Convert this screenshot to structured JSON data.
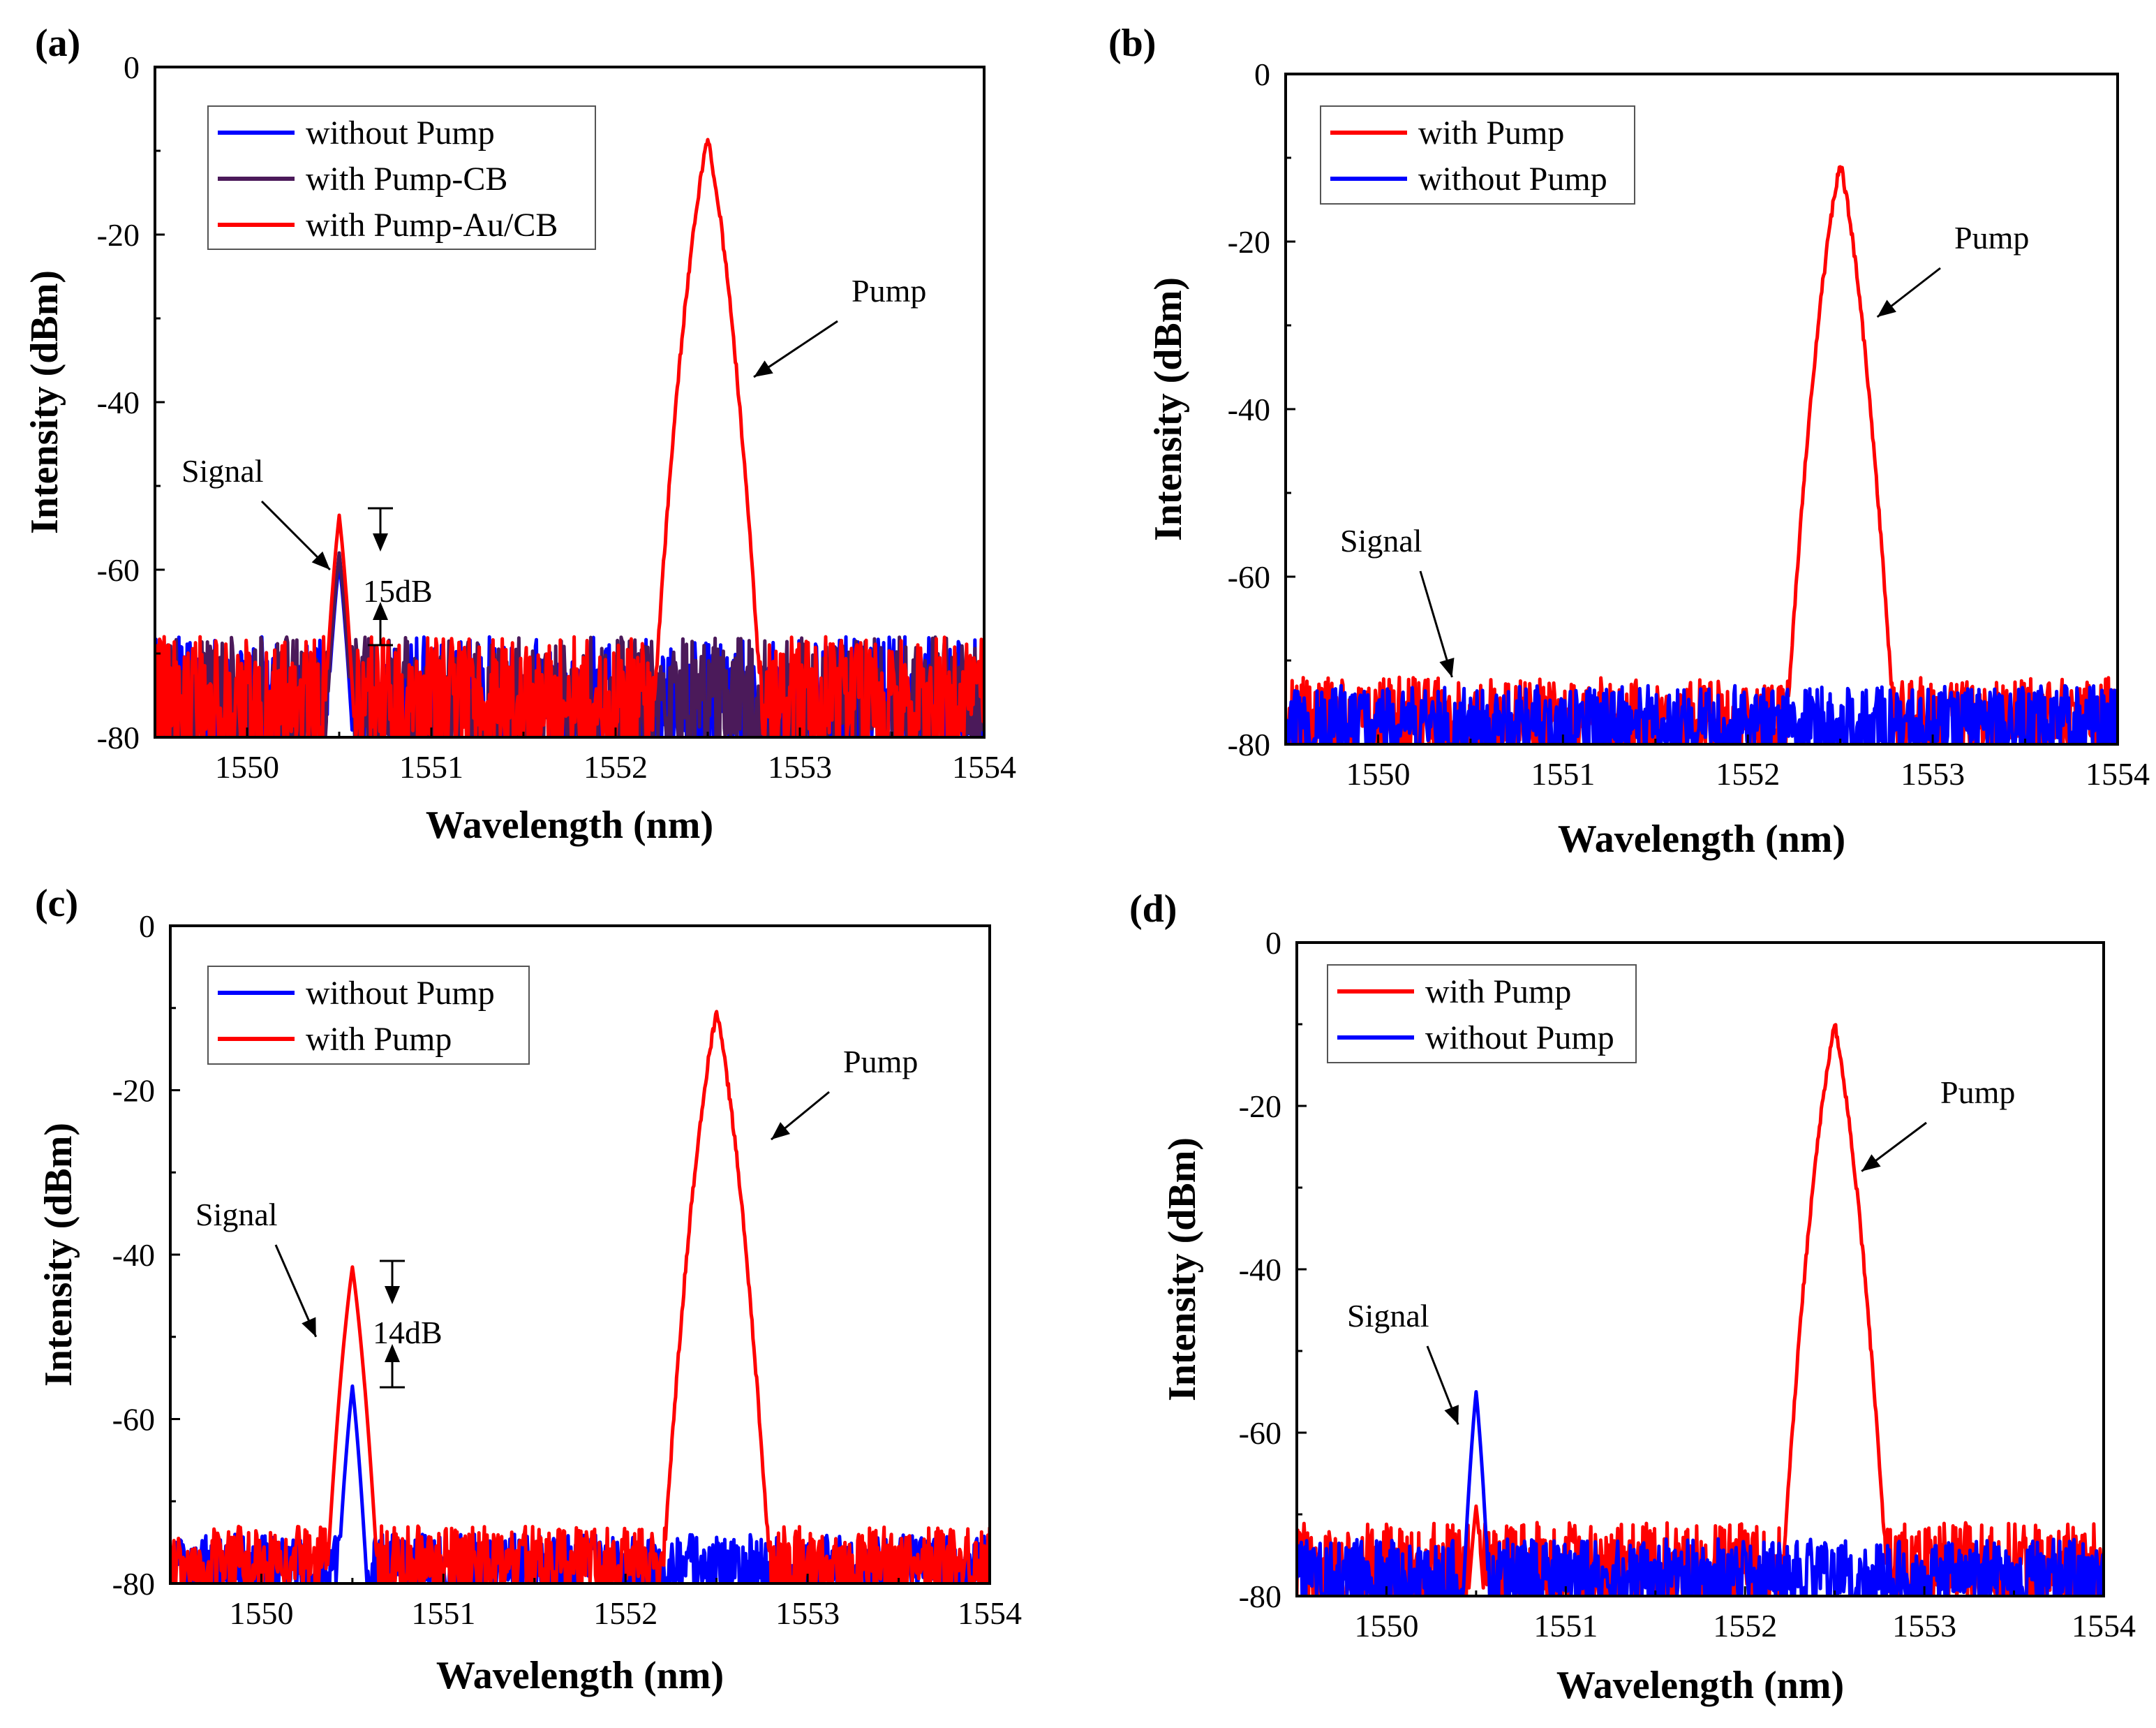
{
  "chart_data": [
    {
      "type": "line",
      "panel_label": "(a)",
      "xlabel": "Wavelength (nm)",
      "ylabel": "Intensity (dBm)",
      "xlim": [
        1549.5,
        1554
      ],
      "ylim": [
        -80,
        0
      ],
      "xticks": [
        "1550",
        "1551",
        "1552",
        "1553",
        "1554"
      ],
      "yticks": [
        "0",
        "-20",
        "-40",
        "-60",
        "-80"
      ],
      "legend_position": "top-left",
      "series": [
        {
          "name": "without Pump",
          "color": "#0000ff",
          "profile": {
            "noise_floor": -74,
            "noise_range": [
              -80,
              -68
            ],
            "signal_peak": {
              "x": 1550.5,
              "y": -59,
              "width": 0.04
            }
          }
        },
        {
          "name": "with Pump-CB",
          "color": "#4b1a5a",
          "profile": {
            "noise_floor": -74,
            "noise_range": [
              -80,
              -68
            ],
            "signal_peak": {
              "x": 1550.5,
              "y": -58,
              "width": 0.04
            }
          }
        },
        {
          "name": "with Pump-Au/CB",
          "color": "#ff0000",
          "profile": {
            "noise_floor": -74,
            "noise_range": [
              -80,
              -68
            ],
            "signal_peak": {
              "x": 1550.5,
              "y": -53.5,
              "width": 0.04
            },
            "pump_peak": {
              "x": 1552.5,
              "y": -8.5,
              "width": 0.07
            }
          }
        }
      ],
      "annotations": [
        {
          "text": "Signal",
          "arrow_to": [
            1550.45,
            -60
          ]
        },
        {
          "text": "Pump",
          "arrow_to": [
            1552.75,
            -37
          ]
        },
        {
          "text": "15dB"
        }
      ]
    },
    {
      "type": "line",
      "panel_label": "(b)",
      "xlabel": "Wavelength (nm)",
      "ylabel": "Intensity (dBm)",
      "xlim": [
        1549.5,
        1554
      ],
      "ylim": [
        -80,
        0
      ],
      "xticks": [
        "1550",
        "1551",
        "1552",
        "1553",
        "1554"
      ],
      "yticks": [
        "0",
        "-20",
        "-40",
        "-60",
        "-80"
      ],
      "legend_position": "top-left",
      "series": [
        {
          "name": "with Pump",
          "color": "#ff0000",
          "profile": {
            "noise_floor": -76,
            "noise_range": [
              -80,
              -72
            ],
            "pump_peak": {
              "x": 1552.5,
              "y": -10.5,
              "width": 0.07
            }
          }
        },
        {
          "name": "without Pump",
          "color": "#0000ff",
          "profile": {
            "noise_floor": -78,
            "noise_range": [
              -80,
              -73
            ]
          }
        }
      ],
      "annotations": [
        {
          "text": "Signal",
          "arrow_to": [
            1550.4,
            -72
          ]
        },
        {
          "text": "Pump",
          "arrow_to": [
            1552.7,
            -29
          ]
        }
      ]
    },
    {
      "type": "line",
      "panel_label": "(c)",
      "xlabel": "Wavelength (nm)",
      "ylabel": "Intensity (dBm)",
      "xlim": [
        1549.5,
        1554
      ],
      "ylim": [
        -80,
        0
      ],
      "xticks": [
        "1550",
        "1551",
        "1552",
        "1553",
        "1554"
      ],
      "yticks": [
        "0",
        "-20",
        "-40",
        "-60",
        "-80"
      ],
      "legend_position": "top-left",
      "series": [
        {
          "name": "without Pump",
          "color": "#0000ff",
          "profile": {
            "noise_floor": -79,
            "noise_range": [
              -80,
              -74
            ],
            "signal_peak": {
              "x": 1550.5,
              "y": -56,
              "width": 0.04
            }
          }
        },
        {
          "name": "with Pump",
          "color": "#ff0000",
          "profile": {
            "noise_floor": -77,
            "noise_range": [
              -80,
              -73
            ],
            "signal_peak": {
              "x": 1550.5,
              "y": -41.5,
              "width": 0.05
            },
            "pump_peak": {
              "x": 1552.5,
              "y": -10.5,
              "width": 0.07
            }
          }
        }
      ],
      "annotations": [
        {
          "text": "Signal",
          "arrow_to": [
            1550.3,
            -50
          ]
        },
        {
          "text": "Pump",
          "arrow_to": [
            1552.8,
            -26
          ]
        },
        {
          "text": "14dB"
        }
      ]
    },
    {
      "type": "line",
      "panel_label": "(d)",
      "xlabel": "Wavelength (nm)",
      "ylabel": "Intensity (dBm)",
      "xlim": [
        1549.5,
        1554
      ],
      "ylim": [
        -80,
        0
      ],
      "xticks": [
        "1550",
        "1551",
        "1552",
        "1553",
        "1554"
      ],
      "yticks": [
        "0",
        "-20",
        "-40",
        "-60",
        "-80"
      ],
      "legend_position": "top-left",
      "series": [
        {
          "name": "with Pump",
          "color": "#ff0000",
          "profile": {
            "noise_floor": -77,
            "noise_range": [
              -80,
              -71
            ],
            "signal_peak": {
              "x": 1550.5,
              "y": -69,
              "width": 0.04
            },
            "pump_peak": {
              "x": 1552.5,
              "y": -10,
              "width": 0.07
            }
          }
        },
        {
          "name": "without Pump",
          "color": "#0000ff",
          "profile": {
            "noise_floor": -78,
            "noise_range": [
              -80,
              -73
            ],
            "signal_peak": {
              "x": 1550.5,
              "y": -55,
              "width": 0.035
            }
          }
        }
      ],
      "annotations": [
        {
          "text": "Signal",
          "arrow_to": [
            1550.4,
            -59
          ]
        },
        {
          "text": "Pump",
          "arrow_to": [
            1552.65,
            -28
          ]
        }
      ]
    }
  ]
}
